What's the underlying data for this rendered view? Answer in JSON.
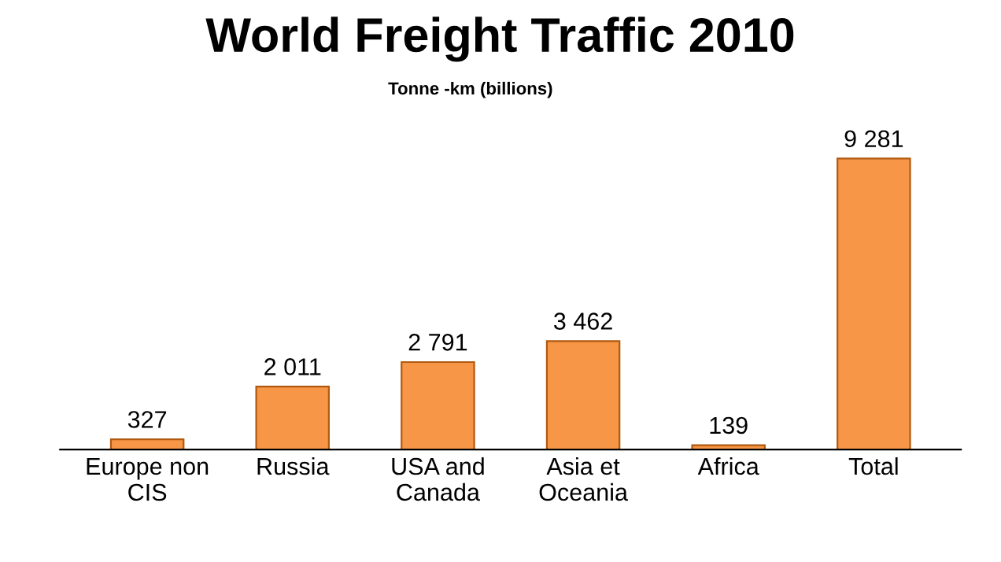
{
  "chart_data": {
    "type": "bar",
    "title": "World Freight Traffic 2010",
    "subtitle": "Tonne -km (billions)",
    "categories": [
      "Europe non\nCIS",
      "Russia",
      "USA and\nCanada",
      "Asia et\nOceania",
      "Africa",
      "Total"
    ],
    "values": [
      327,
      2011,
      2791,
      3462,
      139,
      9281
    ],
    "value_labels": [
      "327",
      "2 011",
      "2 791",
      "3 462",
      "139",
      "9 281"
    ],
    "color": "#f79646",
    "grid": false,
    "legend": false
  }
}
